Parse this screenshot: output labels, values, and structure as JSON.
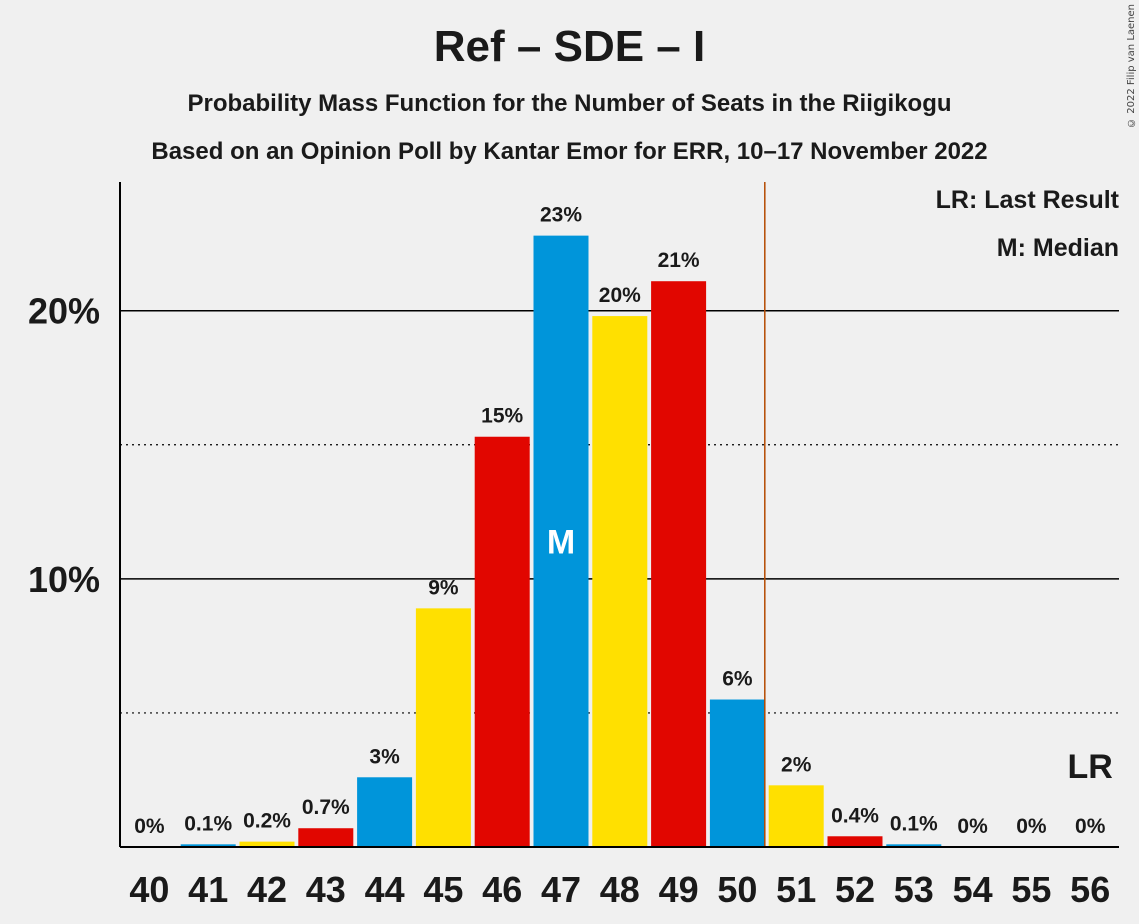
{
  "copyright": "© 2022 Filip van Laenen",
  "chart_data": {
    "type": "bar",
    "title": "Ref – SDE – I",
    "subtitle": "Probability Mass Function for the Number of Seats in the Riigikogu",
    "subtitle2": "Based on an Opinion Poll by Kantar Emor for ERR, 10–17 November 2022",
    "categories": [
      "40",
      "41",
      "42",
      "43",
      "44",
      "45",
      "46",
      "47",
      "48",
      "49",
      "50",
      "51",
      "52",
      "53",
      "54",
      "55",
      "56"
    ],
    "values": [
      0,
      0.1,
      0.2,
      0.7,
      2.6,
      8.9,
      15.3,
      22.8,
      19.8,
      21.1,
      5.5,
      2.3,
      0.4,
      0.1,
      0,
      0,
      0
    ],
    "labels": [
      "0%",
      "0.1%",
      "0.2%",
      "0.7%",
      "3%",
      "9%",
      "15%",
      "23%",
      "20%",
      "21%",
      "6%",
      "2%",
      "0.4%",
      "0.1%",
      "0%",
      "0%",
      "0%"
    ],
    "bar_colors": [
      "#0095DA",
      "#0095DA",
      "#FFE000",
      "#E10600",
      "#0095DA",
      "#FFE000",
      "#E10600",
      "#0095DA",
      "#FFE000",
      "#E10600",
      "#0095DA",
      "#FFE000",
      "#E10600",
      "#0095DA",
      "#FFE000",
      "#E10600",
      "#0095DA"
    ],
    "ylim": [
      0,
      24.8
    ],
    "yticks": [
      10,
      20
    ],
    "ytick_labels": [
      "10%",
      "20%"
    ],
    "minor_gridlines": [
      5,
      15
    ],
    "median_seat": "47",
    "median_marker": "M",
    "last_result_seat": "56",
    "last_result_marker": "LR",
    "last_result_line_color": "#B44A00",
    "legend": {
      "lr": "LR: Last Result",
      "m": "M: Median"
    }
  }
}
